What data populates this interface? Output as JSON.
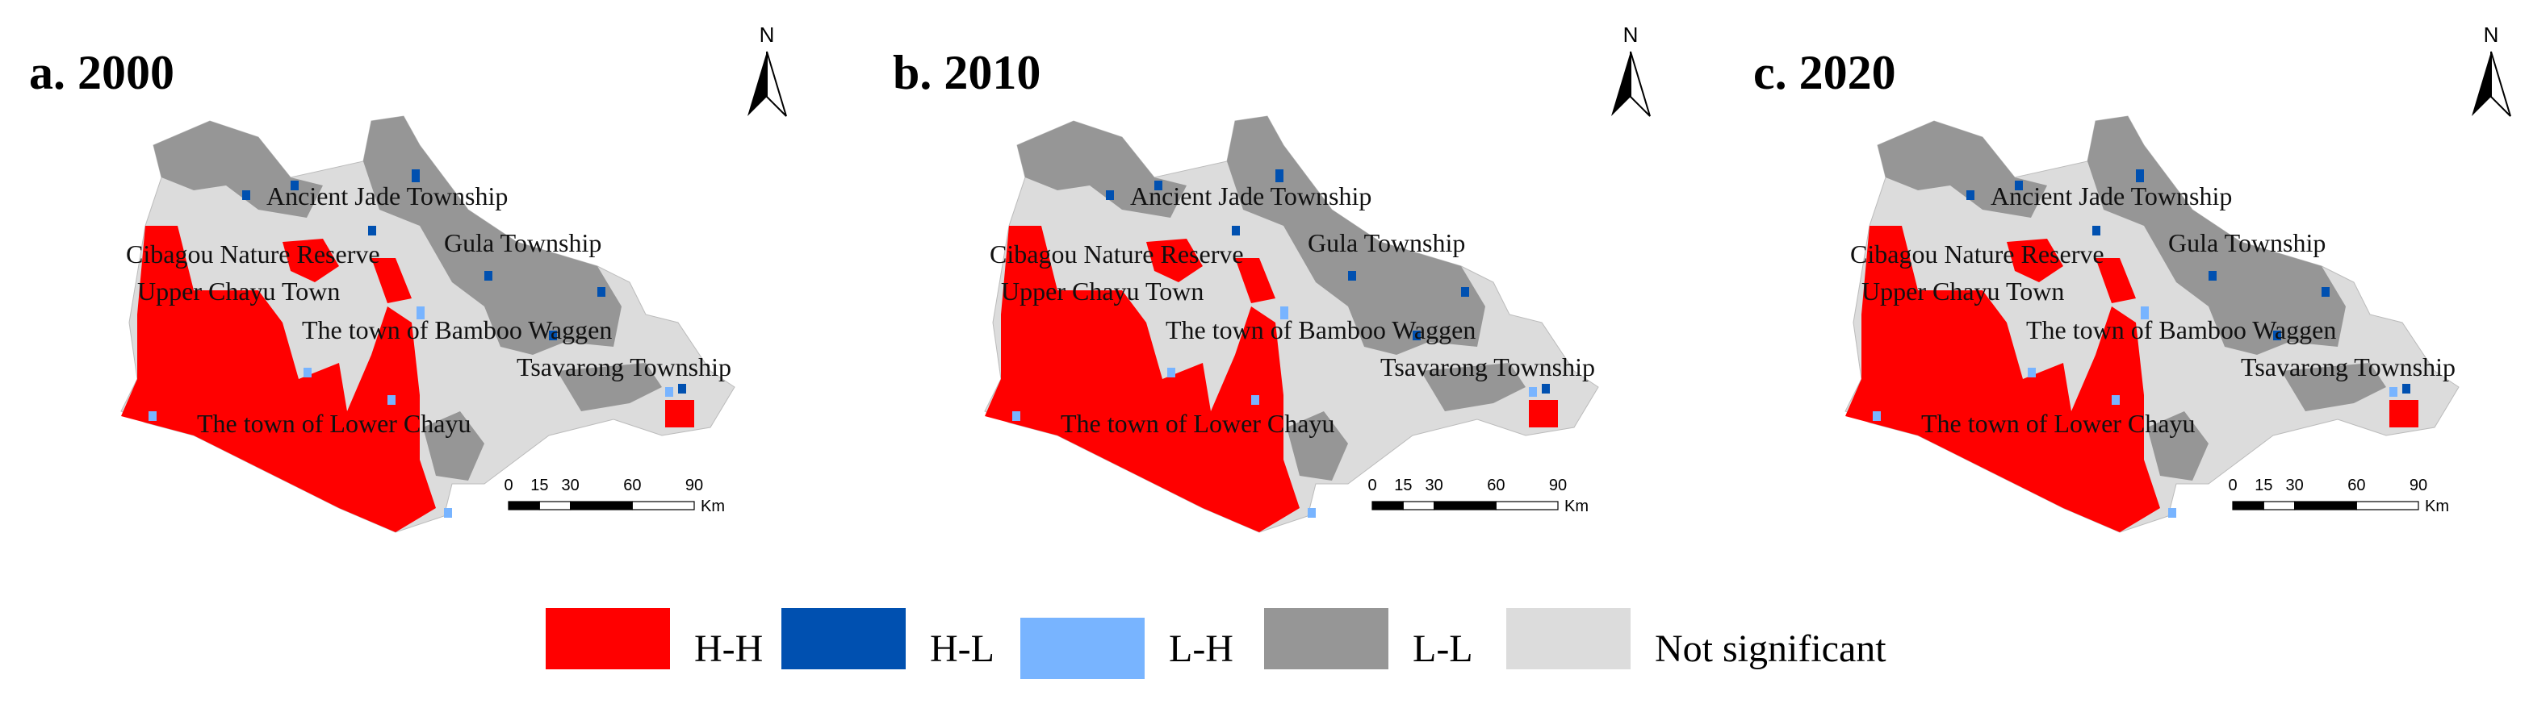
{
  "panels": [
    {
      "title": "a. 2000",
      "north": "N",
      "places": [
        "Ancient Jade Township",
        "Gula Township",
        "Cibagou Nature Reserve",
        "Upper Chayu Town",
        "The town of Bamboo Waggen",
        "Tsavarong Township",
        "The town of Lower Chayu"
      ],
      "scale": {
        "ticks": [
          0,
          15,
          30,
          60,
          90
        ],
        "unit": "Km"
      }
    },
    {
      "title": "b. 2010",
      "north": "N",
      "places": [
        "Ancient Jade Township",
        "Gula Township",
        "Cibagou Nature Reserve",
        "Upper Chayu Town",
        "The town of Bamboo Waggen",
        "Tsavarong Township",
        "The town of Lower Chayu"
      ],
      "scale": {
        "ticks": [
          0,
          15,
          30,
          60,
          90
        ],
        "unit": "Km"
      }
    },
    {
      "title": "c. 2020",
      "north": "N",
      "places": [
        "Ancient Jade Township",
        "Gula Township",
        "Cibagou Nature Reserve",
        "Upper Chayu Town",
        "The town of Bamboo Waggen",
        "Tsavarong Township",
        "The town of Lower Chayu"
      ],
      "scale": {
        "ticks": [
          0,
          15,
          30,
          60,
          90
        ],
        "unit": "Km"
      }
    }
  ],
  "legend": [
    {
      "label": "H-H",
      "color": "#ff0000"
    },
    {
      "label": "H-L",
      "color": "#0050b0"
    },
    {
      "label": "L-H",
      "color": "#78b4ff"
    },
    {
      "label": "L-L",
      "color": "#969696"
    },
    {
      "label": "Not significant",
      "color": "#dcdcdc"
    }
  ]
}
